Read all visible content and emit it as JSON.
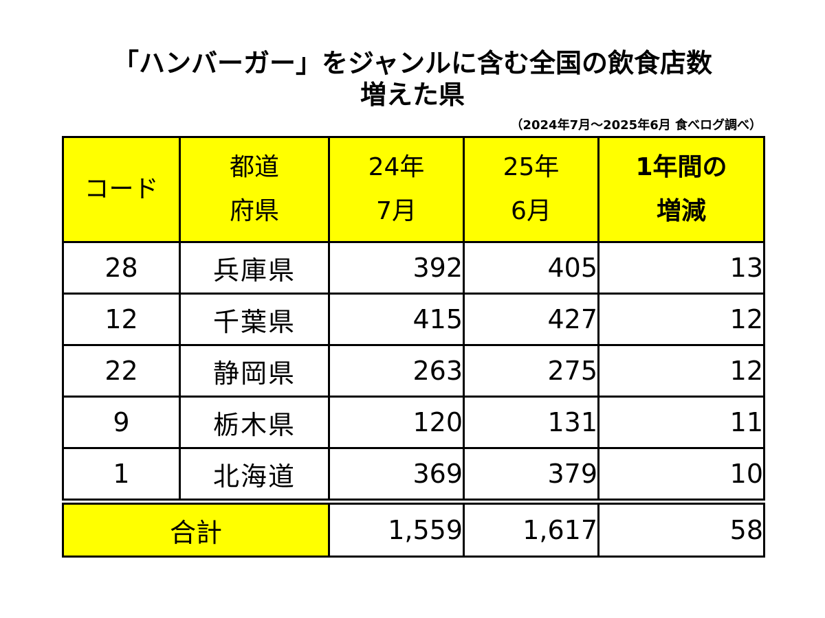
{
  "title": {
    "line1": "「ハンバーガー」をジャンルに含む全国の飲食店数",
    "line2": "増えた県"
  },
  "source": "（2024年7月～2025年6月 食べログ調べ）",
  "colors": {
    "header_bg": "#ffff00",
    "border": "#000000"
  },
  "table": {
    "headers": {
      "code": "コード",
      "pref_line1": "都道",
      "pref_line2": "府県",
      "y24_line1": "24年",
      "y24_line2": "7月",
      "y25_line1": "25年",
      "y25_line2": "6月",
      "inc_line1": "1年間の",
      "inc_line2": "増減"
    },
    "rows": [
      {
        "code": "28",
        "pref": "兵庫県",
        "y24": "392",
        "y25": "405",
        "inc": "13"
      },
      {
        "code": "12",
        "pref": "千葉県",
        "y24": "415",
        "y25": "427",
        "inc": "12"
      },
      {
        "code": "22",
        "pref": "静岡県",
        "y24": "263",
        "y25": "275",
        "inc": "12"
      },
      {
        "code": "9",
        "pref": "栃木県",
        "y24": "120",
        "y25": "131",
        "inc": "11"
      },
      {
        "code": "1",
        "pref": "北海道",
        "y24": "369",
        "y25": "379",
        "inc": "10"
      }
    ],
    "total": {
      "label": "合計",
      "y24": "1,559",
      "y25": "1,617",
      "inc": "58"
    }
  }
}
